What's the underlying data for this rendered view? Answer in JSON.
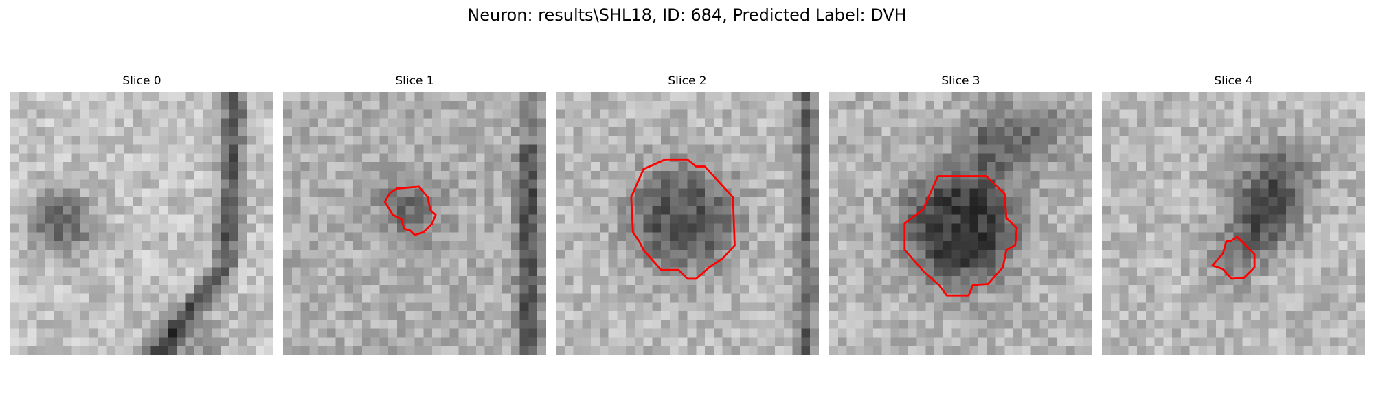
{
  "header": {
    "title": "Neuron: results\\SHL18, ID: 684, Predicted Label: DVH"
  },
  "panels": [
    {
      "title": "Slice 0"
    },
    {
      "title": "Slice 1"
    },
    {
      "title": "Slice 2"
    },
    {
      "title": "Slice 3"
    },
    {
      "title": "Slice 4"
    }
  ]
}
